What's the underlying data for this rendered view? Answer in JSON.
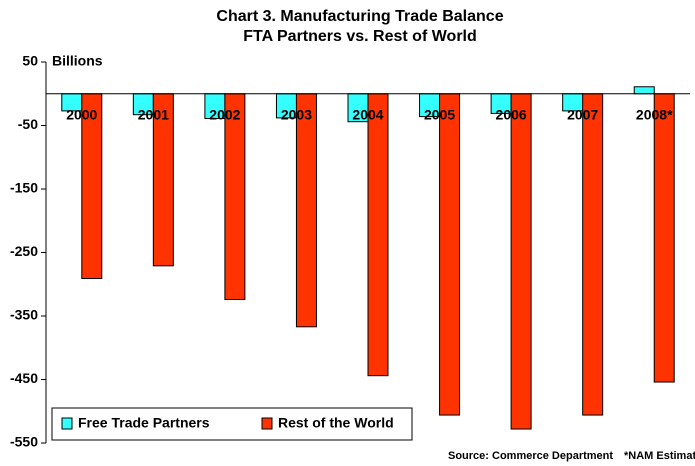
{
  "chart_data": {
    "type": "bar",
    "title": "Chart 3.  Manufacturing Trade Balance",
    "subtitle": "FTA Partners vs. Rest of World",
    "y_label": "Billions",
    "categories": [
      "2000",
      "2001",
      "2002",
      "2003",
      "2004",
      "2005",
      "2006",
      "2007",
      "2008*"
    ],
    "series": [
      {
        "name": "Free Trade Partners",
        "color": "#33ffff",
        "values": [
          -27,
          -33,
          -39,
          -38,
          -44,
          -36,
          -31,
          -27,
          11
        ]
      },
      {
        "name": "Rest of the World",
        "color": "#ff3300",
        "values": [
          -291,
          -271,
          -324,
          -367,
          -444,
          -506,
          -528,
          -506,
          -454
        ]
      }
    ],
    "ylim": [
      -550,
      50
    ],
    "yticks": [
      50,
      -50,
      -150,
      -250,
      -350,
      -450,
      -550
    ],
    "legend": "lower left",
    "source": "Source:  Commerce Department",
    "note": "*NAM Estimate"
  }
}
